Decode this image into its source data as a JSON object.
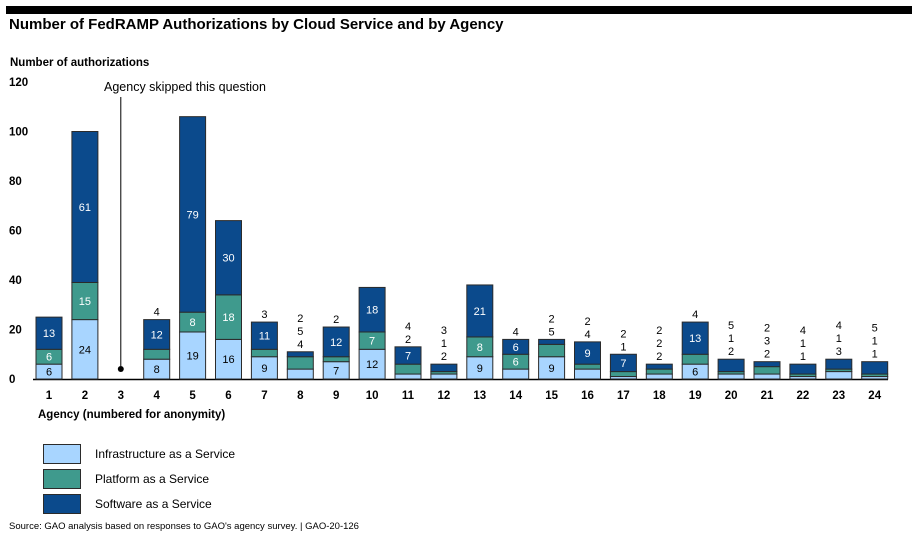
{
  "title": "Number of FedRAMP Authorizations by Cloud Service and by Agency",
  "source": "Source: GAO analysis based on responses to GAO's agency survey.  |  GAO-20-126",
  "colors": {
    "iaas": "#a8d5ff",
    "paas": "#3f9a8d",
    "saas": "#0b4a8c",
    "stroke": "#2b2b2b"
  },
  "chart_data": {
    "type": "bar",
    "stacked": true,
    "ylabel": "Number of authorizations",
    "xlabel": "Agency (numbered for anonymity)",
    "ylim": [
      0,
      120
    ],
    "yticks": [
      0,
      20,
      40,
      60,
      80,
      100,
      120
    ],
    "categories": [
      "1",
      "2",
      "3",
      "4",
      "5",
      "6",
      "7",
      "8",
      "9",
      "10",
      "11",
      "12",
      "13",
      "14",
      "15",
      "16",
      "17",
      "18",
      "19",
      "20",
      "21",
      "22",
      "23",
      "24"
    ],
    "series": [
      {
        "name": "Infrastructure as a Service",
        "color_key": "iaas",
        "values": [
          6,
          24,
          0,
          8,
          19,
          16,
          9,
          4,
          7,
          12,
          2,
          2,
          9,
          4,
          9,
          4,
          1,
          2,
          6,
          2,
          2,
          1,
          3,
          1
        ]
      },
      {
        "name": "Platform as a Service",
        "color_key": "paas",
        "values": [
          6,
          15,
          0,
          4,
          8,
          18,
          3,
          5,
          2,
          7,
          4,
          1,
          8,
          6,
          5,
          2,
          2,
          2,
          4,
          1,
          3,
          1,
          1,
          1
        ]
      },
      {
        "name": "Software as a Service",
        "color_key": "saas",
        "values": [
          13,
          61,
          0,
          12,
          79,
          30,
          11,
          2,
          12,
          18,
          7,
          3,
          21,
          6,
          2,
          9,
          7,
          2,
          13,
          5,
          2,
          4,
          4,
          5
        ]
      }
    ],
    "annotations": [
      {
        "text": "Agency skipped this question",
        "category": "3"
      }
    ]
  }
}
